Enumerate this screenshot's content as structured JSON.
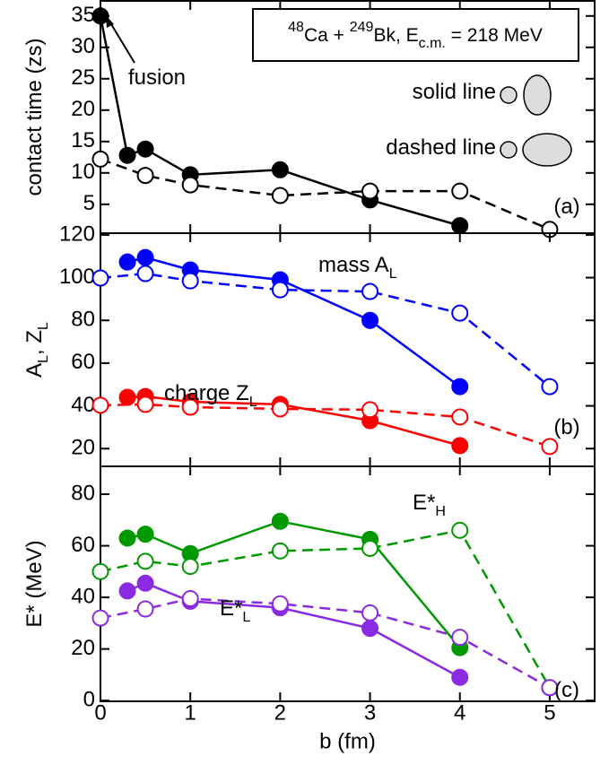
{
  "chart_data": [
    {
      "type": "line",
      "ylabel": [
        {
          "text": "contact time (zs)"
        }
      ],
      "ylim": [
        0.4,
        37.4
      ],
      "yticks": [
        5,
        10,
        15,
        20,
        25,
        30,
        35
      ],
      "xlim": [
        0,
        5.5
      ],
      "series": [
        {
          "color": "#000000",
          "dashed": false,
          "filled": true,
          "x": [
            0,
            0.3,
            0.5,
            1,
            2,
            3,
            4
          ],
          "values": [
            35,
            12.8,
            13.8,
            9.7,
            10.5,
            5.7,
            1.6
          ]
        },
        {
          "color": "#000000",
          "dashed": true,
          "filled": false,
          "x": [
            0,
            0.5,
            1,
            2,
            3,
            4,
            5
          ],
          "values": [
            12.2,
            9.6,
            8.1,
            6.4,
            7.1,
            7.1,
            1.0
          ]
        }
      ],
      "annotations": [
        {
          "parts": [
            {
              "sup": "48"
            },
            {
              "text": "Ca + "
            },
            {
              "sup": "249"
            },
            {
              "text": "Bk, E"
            },
            {
              "sub": "c.m."
            },
            {
              "text": " = 218 MeV"
            }
          ]
        },
        {
          "parts": [
            {
              "text": "fusion"
            }
          ]
        },
        {
          "parts": [
            {
              "text": "solid line"
            }
          ]
        },
        {
          "parts": [
            {
              "text": "dashed line"
            }
          ]
        },
        {
          "parts": [
            {
              "text": "(a)"
            }
          ]
        }
      ]
    },
    {
      "type": "line",
      "ylabel": [
        {
          "text": "A"
        },
        {
          "sub": "L"
        },
        {
          "text": ", Z"
        },
        {
          "sub": "L"
        }
      ],
      "ylim": [
        11.7,
        120.8
      ],
      "yticks": [
        20,
        40,
        60,
        80,
        100,
        120
      ],
      "xlim": [
        0,
        5.5
      ],
      "series": [
        {
          "color": "#0000ff",
          "dashed": false,
          "filled": true,
          "x": [
            0.3,
            0.5,
            1,
            2,
            3,
            4
          ],
          "values": [
            107.3,
            109.4,
            103.6,
            99,
            80,
            49
          ]
        },
        {
          "color": "#0000ff",
          "dashed": true,
          "filled": false,
          "x": [
            0,
            0.5,
            1,
            2,
            3,
            4,
            5
          ],
          "values": [
            99.8,
            101.9,
            98.5,
            94.3,
            93.5,
            83.4,
            49
          ]
        },
        {
          "color": "#ff0000",
          "dashed": false,
          "filled": true,
          "x": [
            0.3,
            0.5,
            1,
            2,
            3,
            4
          ],
          "values": [
            44,
            44.4,
            41.9,
            40.7,
            33.1,
            21.4
          ]
        },
        {
          "color": "#ff0000",
          "dashed": true,
          "filled": false,
          "x": [
            0,
            0.5,
            1,
            2,
            3,
            4,
            5
          ],
          "values": [
            40.3,
            40.7,
            39.4,
            38.6,
            38.2,
            34.8,
            21
          ]
        }
      ],
      "annotations": [
        {
          "color": "#0000ff",
          "parts": [
            {
              "text": "mass A"
            },
            {
              "sub": "L"
            }
          ]
        },
        {
          "color": "#ff0000",
          "parts": [
            {
              "text": "charge Z"
            },
            {
              "sub": "L"
            }
          ]
        },
        {
          "parts": [
            {
              "text": "(b)"
            }
          ]
        }
      ]
    },
    {
      "type": "line",
      "ylabel": [
        {
          "text": "E* (MeV)"
        }
      ],
      "xlabel": "b (fm)",
      "ylim": [
        -0.3,
        90.8
      ],
      "yticks": [
        0,
        20,
        40,
        60,
        80
      ],
      "xlim": [
        0,
        5.5
      ],
      "xticks": [
        0,
        1,
        2,
        3,
        4,
        5
      ],
      "series": [
        {
          "color": "#009900",
          "dashed": false,
          "filled": true,
          "x": [
            0.3,
            0.5,
            1,
            2,
            3,
            4
          ],
          "values": [
            63,
            64.5,
            57,
            69.5,
            62.5,
            20.5
          ]
        },
        {
          "color": "#009900",
          "dashed": true,
          "filled": false,
          "x": [
            0,
            0.5,
            1,
            2,
            3,
            4,
            5
          ],
          "values": [
            50,
            54,
            52,
            58,
            59,
            66,
            5
          ]
        },
        {
          "color": "#8a2be2",
          "dashed": false,
          "filled": true,
          "x": [
            0.3,
            0.5,
            1,
            2,
            3,
            4
          ],
          "values": [
            42.5,
            45.5,
            38.5,
            36,
            28,
            9
          ]
        },
        {
          "color": "#8a2be2",
          "dashed": true,
          "filled": false,
          "x": [
            0,
            0.5,
            1,
            2,
            3,
            4,
            5
          ],
          "values": [
            32,
            35.5,
            39.5,
            37.5,
            34,
            24.5,
            5
          ]
        }
      ],
      "annotations": [
        {
          "color": "#009900",
          "parts": [
            {
              "text": "E*"
            },
            {
              "sub": "H"
            }
          ]
        },
        {
          "color": "#8a2be2",
          "parts": [
            {
              "text": "E*"
            },
            {
              "sub": "L"
            }
          ]
        },
        {
          "parts": [
            {
              "text": "(c)"
            }
          ]
        }
      ]
    }
  ]
}
